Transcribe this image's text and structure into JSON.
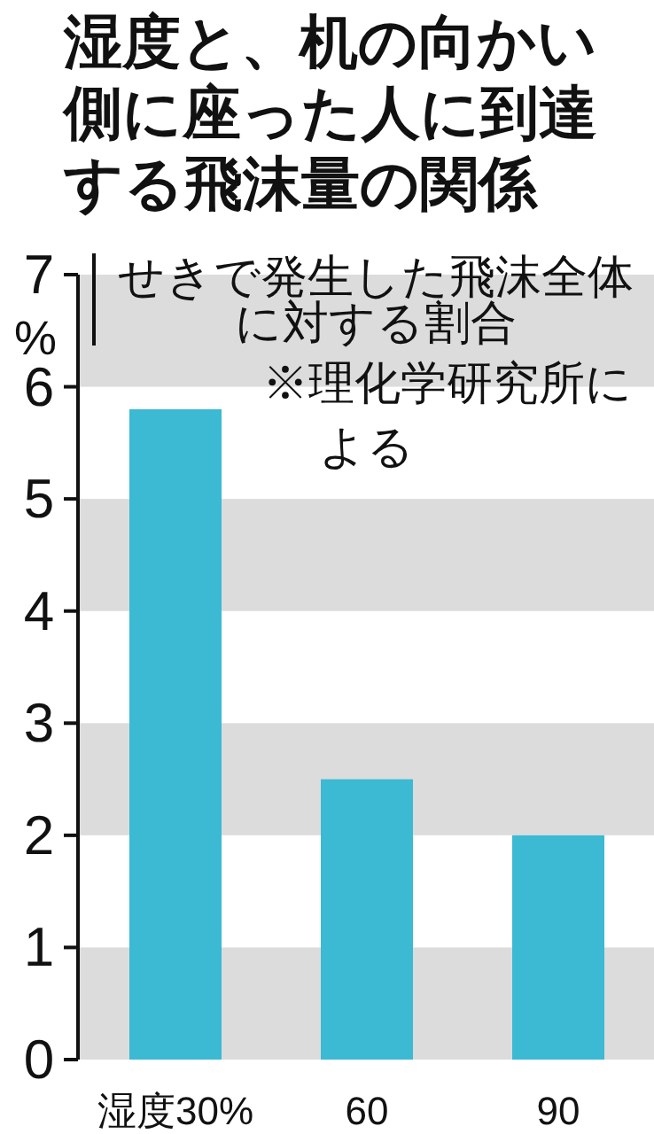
{
  "chart_data": {
    "type": "bar",
    "title": "湿度と、机の向かい側に座った人に到達する飛沫量の関係",
    "subtitle": "せきで発生した飛沫全体に対する割合",
    "ylabel": "%",
    "annotations": [
      "※理化学研究所による"
    ],
    "categories": [
      "湿度30%",
      "60",
      "90"
    ],
    "values": [
      5.8,
      2.5,
      2.0
    ],
    "color": "#3cb9d3",
    "ylim": [
      0,
      7
    ],
    "yticks": [
      0,
      1,
      2,
      3,
      4,
      5,
      6,
      7
    ],
    "grid": false,
    "bands": [
      {
        "axis": "y",
        "from": 0,
        "to": 1,
        "color": "#dcdcdc"
      },
      {
        "axis": "y",
        "from": 2,
        "to": 3,
        "color": "#dcdcdc"
      },
      {
        "axis": "y",
        "from": 4,
        "to": 5,
        "color": "#dcdcdc"
      },
      {
        "axis": "y",
        "from": 6,
        "to": 7,
        "color": "#dcdcdc"
      }
    ]
  }
}
